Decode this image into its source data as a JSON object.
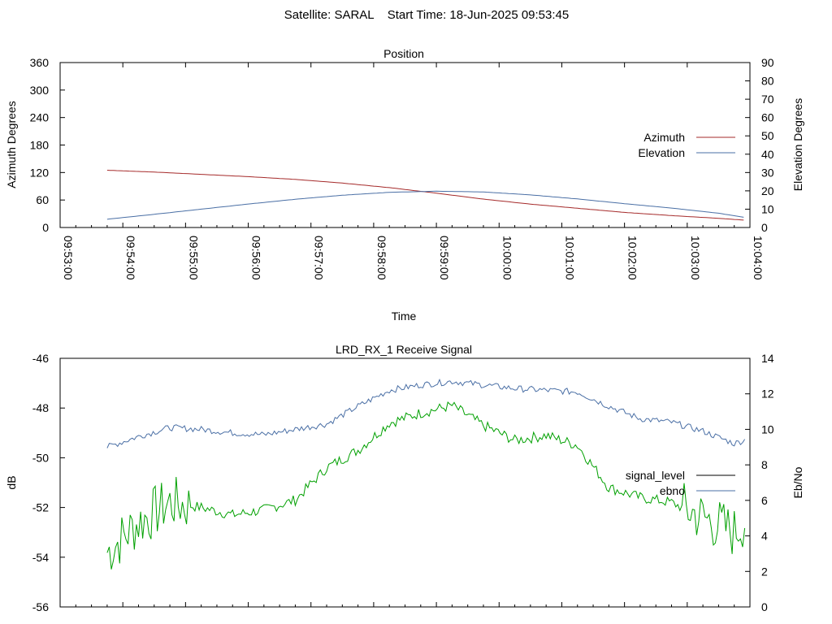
{
  "header": {
    "title": "Satellite: SARAL    Start Time: 18-Jun-2025 09:53:45"
  },
  "chart_data": [
    {
      "type": "line",
      "title": "Position",
      "xlabel": "Time",
      "ylabel": "Azimuth Degrees",
      "y2label": "Elevation Degrees",
      "x_ticks": [
        "09:53:00",
        "09:54:00",
        "09:55:00",
        "09:56:00",
        "09:57:00",
        "09:58:00",
        "09:59:00",
        "10:00:00",
        "10:01:00",
        "10:02:00",
        "10:03:00",
        "10:04:00"
      ],
      "xlim": [
        "09:53:00",
        "10:04:00"
      ],
      "ylim": [
        0,
        360
      ],
      "y_ticks": [
        "0",
        "60",
        "120",
        "180",
        "240",
        "300",
        "360"
      ],
      "y2lim": [
        0,
        90
      ],
      "y2_ticks": [
        "0",
        "10",
        "20",
        "30",
        "40",
        "50",
        "60",
        "70",
        "80",
        "90"
      ],
      "legend_position": "right",
      "series": [
        {
          "name": "Azimuth",
          "axis": "y",
          "color": "#a52a2a",
          "x": [
            "09:53:45",
            "09:54:30",
            "09:55:15",
            "09:56:00",
            "09:56:45",
            "09:57:30",
            "09:58:15",
            "09:59:00",
            "09:59:45",
            "10:00:30",
            "10:01:15",
            "10:02:00",
            "10:02:45",
            "10:03:30",
            "10:03:55"
          ],
          "y": [
            125,
            121,
            116,
            111,
            105,
            97,
            87,
            75,
            62,
            51,
            42,
            33,
            26,
            20,
            16
          ]
        },
        {
          "name": "Elevation",
          "axis": "y2",
          "color": "#4a6fa5",
          "x": [
            "09:53:45",
            "09:54:30",
            "09:55:15",
            "09:56:00",
            "09:56:45",
            "09:57:30",
            "09:58:15",
            "09:59:00",
            "09:59:45",
            "10:00:30",
            "10:01:15",
            "10:02:00",
            "10:02:45",
            "10:03:30",
            "10:03:55"
          ],
          "y": [
            4.5,
            7.2,
            10.0,
            12.8,
            15.4,
            17.6,
            19.2,
            19.8,
            19.4,
            17.8,
            15.6,
            13.0,
            10.6,
            7.8,
            5.5
          ]
        }
      ]
    },
    {
      "type": "line",
      "title": "LRD_RX_1 Receive Signal",
      "ylabel": "dB",
      "y2label": "Eb/No",
      "xlim": [
        "09:53:00",
        "10:04:00"
      ],
      "ylim": [
        -56,
        -46
      ],
      "y_ticks": [
        "-56",
        "-54",
        "-52",
        "-50",
        "-48",
        "-46"
      ],
      "y2lim": [
        0,
        14
      ],
      "y2_ticks": [
        "0",
        "2",
        "4",
        "6",
        "8",
        "10",
        "12",
        "14"
      ],
      "legend_position": "right",
      "series": [
        {
          "name": "signal_level",
          "axis": "y",
          "color": "#00a000",
          "legend_color": "#000000",
          "x": [
            "09:53:45",
            "09:54:15",
            "09:54:45",
            "09:55:15",
            "09:55:45",
            "09:56:15",
            "09:56:45",
            "09:57:15",
            "09:57:45",
            "09:58:15",
            "09:58:45",
            "09:59:15",
            "09:59:45",
            "10:00:15",
            "10:00:45",
            "10:01:15",
            "10:01:45",
            "10:02:15",
            "10:02:45",
            "10:03:15",
            "10:03:45",
            "10:03:55"
          ],
          "y": [
            -53.8,
            -52.6,
            -51.8,
            -52.0,
            -52.3,
            -52.1,
            -51.7,
            -50.4,
            -49.7,
            -48.6,
            -48.2,
            -47.9,
            -48.7,
            -49.3,
            -49.1,
            -49.5,
            -51.2,
            -51.6,
            -51.8,
            -52.4,
            -53.0,
            -52.5
          ]
        },
        {
          "name": "ebno",
          "axis": "y2",
          "color": "#4a6fa5",
          "x": [
            "09:53:45",
            "09:54:15",
            "09:54:45",
            "09:55:15",
            "09:55:45",
            "09:56:15",
            "09:56:45",
            "09:57:15",
            "09:57:45",
            "09:58:15",
            "09:58:45",
            "09:59:15",
            "09:59:45",
            "10:00:15",
            "10:00:45",
            "10:01:15",
            "10:01:45",
            "10:02:15",
            "10:02:45",
            "10:03:15",
            "10:03:45",
            "10:03:55"
          ],
          "y": [
            9.0,
            9.6,
            10.1,
            10.0,
            9.8,
            9.7,
            10.0,
            10.3,
            11.3,
            12.2,
            12.5,
            12.7,
            12.5,
            12.3,
            12.2,
            12.1,
            11.3,
            10.6,
            10.4,
            9.9,
            9.2,
            9.4
          ]
        }
      ]
    }
  ]
}
